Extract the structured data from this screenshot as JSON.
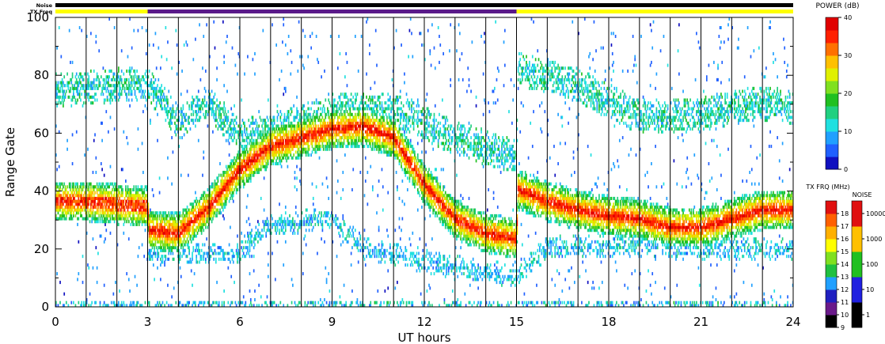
{
  "chart_data": {
    "type": "heatmap",
    "xlabel": "UT hours",
    "ylabel": "Range Gate",
    "xlim": [
      0,
      24
    ],
    "ylim": [
      0,
      100
    ],
    "x_ticks": [
      0,
      3,
      6,
      9,
      12,
      15,
      18,
      21,
      24
    ],
    "x_minor_ticks": [
      1,
      2,
      4,
      5,
      7,
      8,
      10,
      11,
      13,
      14,
      16,
      17,
      19,
      20,
      22,
      23
    ],
    "y_ticks": [
      0,
      20,
      40,
      60,
      80,
      100
    ],
    "vertical_lines_every_hours": 1,
    "status_bars": {
      "noise_label": "Noise",
      "txfreq_label": "TX Freq",
      "noise_color": "#000000",
      "txfreq_segments": [
        {
          "x": [
            0,
            3
          ],
          "color": "#ffff00"
        },
        {
          "x": [
            3,
            15
          ],
          "color": "#5a1a8a"
        },
        {
          "x": [
            15,
            24
          ],
          "color": "#ffff00"
        }
      ]
    },
    "power_scale": {
      "title": "POWER (dB)",
      "min": 0,
      "max": 40,
      "ticks": [
        0,
        10,
        20,
        30,
        40
      ],
      "colors": [
        "#1010c0",
        "#2060ff",
        "#20a0ff",
        "#20e0e0",
        "#20d080",
        "#20c020",
        "#80e020",
        "#e0f000",
        "#ffc000",
        "#ff7000",
        "#ff2000",
        "#e00000"
      ]
    },
    "txfreq_scale": {
      "title": "TX FRQ (MHz)",
      "ticks": [
        "9",
        "10",
        "11",
        "12",
        "13",
        "14",
        "15",
        "16",
        "17",
        "18"
      ],
      "colors": [
        "#000000",
        "#6a1a8a",
        "#2020c0",
        "#20a0ff",
        "#20c040",
        "#80e020",
        "#ffff00",
        "#ffb000",
        "#ff6000",
        "#e01010"
      ]
    },
    "noise_scale": {
      "title": "NOISE",
      "ticks": [
        "1",
        "10",
        "100",
        "1000",
        "10000"
      ],
      "colors": [
        "#000000",
        "#2020e0",
        "#20c020",
        "#ffc000",
        "#e01010"
      ]
    },
    "bands": [
      {
        "name": "main",
        "points": [
          [
            0,
            36
          ],
          [
            1,
            36
          ],
          [
            2,
            35
          ],
          [
            3,
            34
          ],
          [
            3.05,
            26
          ],
          [
            4,
            25
          ],
          [
            5,
            34
          ],
          [
            6,
            47
          ],
          [
            7,
            55
          ],
          [
            8,
            58
          ],
          [
            9,
            61
          ],
          [
            10,
            62
          ],
          [
            11,
            58
          ],
          [
            12,
            42
          ],
          [
            13,
            30
          ],
          [
            14,
            25
          ],
          [
            15,
            23
          ],
          [
            15.05,
            40
          ],
          [
            16,
            36
          ],
          [
            17,
            33
          ],
          [
            18,
            31
          ],
          [
            19,
            30
          ],
          [
            20,
            27
          ],
          [
            21,
            27
          ],
          [
            22,
            30
          ],
          [
            23,
            33
          ],
          [
            24,
            33
          ]
        ]
      },
      {
        "name": "upper",
        "points": [
          [
            0,
            74
          ],
          [
            3,
            77
          ],
          [
            4,
            63
          ],
          [
            5,
            70
          ],
          [
            6,
            58
          ],
          [
            9,
            67
          ],
          [
            11,
            68
          ],
          [
            13,
            58
          ],
          [
            15,
            51
          ],
          [
            15.05,
            82
          ],
          [
            17,
            76
          ],
          [
            19,
            65
          ],
          [
            21,
            66
          ],
          [
            23,
            70
          ],
          [
            24,
            68
          ]
        ]
      },
      {
        "name": "lower",
        "points": [
          [
            3,
            18
          ],
          [
            6,
            18
          ],
          [
            7,
            28
          ],
          [
            9,
            30
          ],
          [
            10,
            20
          ],
          [
            12,
            15
          ],
          [
            15,
            10
          ],
          [
            16,
            20
          ],
          [
            20,
            21
          ],
          [
            22,
            19
          ],
          [
            24,
            20
          ]
        ]
      }
    ]
  }
}
